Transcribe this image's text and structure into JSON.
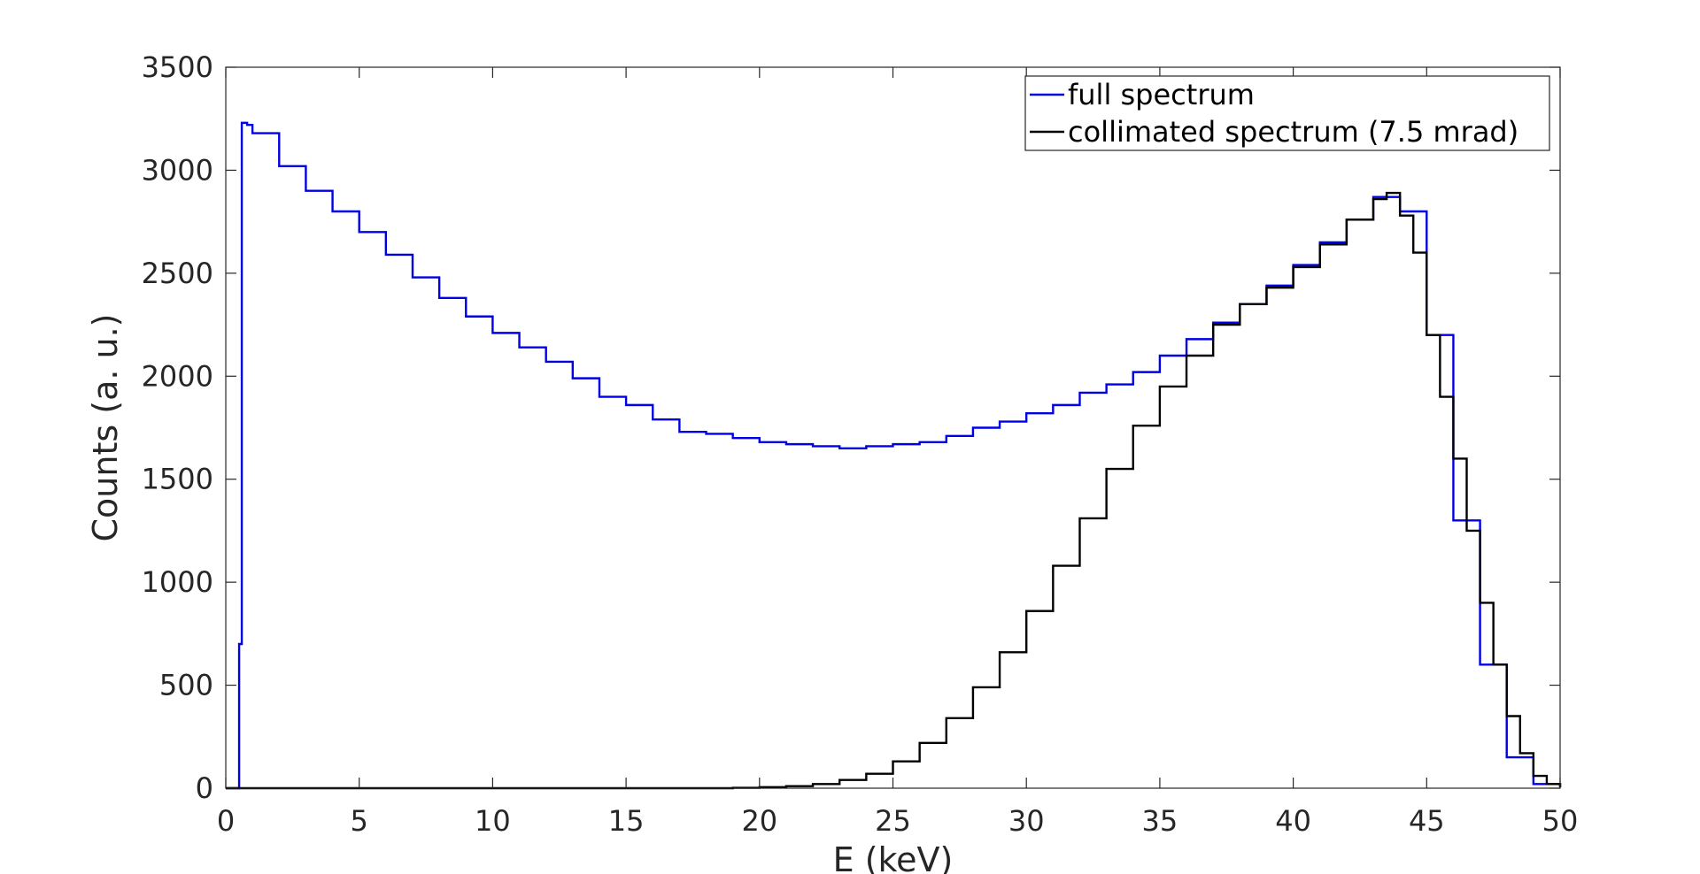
{
  "chart_data": {
    "type": "line",
    "xlabel": "E (keV)",
    "ylabel": "Counts (a. u.)",
    "xlim": [
      0,
      50
    ],
    "ylim": [
      0,
      3500
    ],
    "xticks": [
      0,
      5,
      10,
      15,
      20,
      25,
      30,
      35,
      40,
      45,
      50
    ],
    "yticks": [
      0,
      500,
      1000,
      1500,
      2000,
      2500,
      3000,
      3500
    ],
    "grid": false,
    "legend_position": "top-right",
    "step": true,
    "series": [
      {
        "name": "full spectrum",
        "color": "#0000e6",
        "x": [
          0,
          0.45,
          0.5,
          0.6,
          0.8,
          1,
          2,
          3,
          4,
          5,
          6,
          7,
          8,
          9,
          10,
          11,
          12,
          13,
          14,
          15,
          16,
          17,
          18,
          19,
          20,
          21,
          22,
          23,
          24,
          25,
          26,
          27,
          28,
          29,
          30,
          31,
          32,
          33,
          34,
          35,
          36,
          37,
          38,
          39,
          40,
          41,
          42,
          43,
          44,
          45,
          46,
          47,
          48,
          49,
          50
        ],
        "y": [
          0,
          0,
          700,
          3230,
          3220,
          3180,
          3020,
          2900,
          2800,
          2700,
          2590,
          2480,
          2380,
          2290,
          2210,
          2140,
          2070,
          1990,
          1900,
          1860,
          1790,
          1730,
          1720,
          1700,
          1680,
          1670,
          1660,
          1650,
          1660,
          1670,
          1680,
          1710,
          1750,
          1780,
          1820,
          1860,
          1920,
          1960,
          2020,
          2100,
          2180,
          2260,
          2350,
          2440,
          2540,
          2650,
          2760,
          2870,
          2800,
          2200,
          1300,
          600,
          150,
          20,
          5
        ]
      },
      {
        "name": "collimated spectrum (7.5 mrad)",
        "color": "#000000",
        "x": [
          0,
          15,
          19,
          20,
          21,
          22,
          23,
          24,
          25,
          26,
          27,
          28,
          29,
          30,
          31,
          32,
          33,
          34,
          35,
          36,
          37,
          38,
          39,
          40,
          41,
          42,
          43,
          43.5,
          44,
          44.5,
          45,
          45.5,
          46,
          46.5,
          47,
          47.5,
          48,
          48.5,
          49,
          49.5,
          50
        ],
        "y": [
          0,
          0,
          2,
          5,
          10,
          20,
          40,
          70,
          130,
          220,
          340,
          490,
          660,
          860,
          1080,
          1310,
          1550,
          1760,
          1950,
          2100,
          2250,
          2350,
          2430,
          2530,
          2640,
          2760,
          2860,
          2890,
          2780,
          2600,
          2200,
          1900,
          1600,
          1250,
          900,
          600,
          350,
          170,
          60,
          20,
          5
        ]
      }
    ]
  }
}
